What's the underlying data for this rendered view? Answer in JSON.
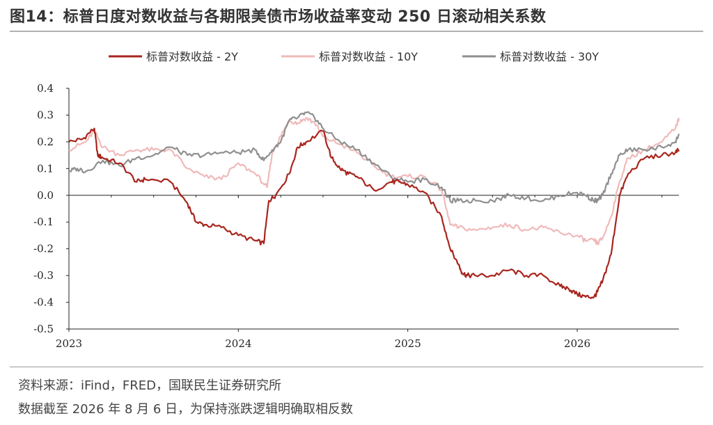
{
  "title": "图14：标普日度对数收益与各期限美债市场收益率变动 250 日滚动相关系数",
  "source_note": "资料来源：iFind，FRED，国联民生证券研究所",
  "date_note": "数据截至 2026 年 8 月 6 日，为保持涨跌逻辑明确取相反数",
  "chart_data": {
    "type": "line",
    "xlabel": "",
    "ylabel": "",
    "x_ticks": [
      "2023",
      "2024",
      "2025",
      "2026"
    ],
    "y_ticks": [
      "0.4",
      "0.3",
      "0.2",
      "0.1",
      "0.0",
      "-0.1",
      "-0.2",
      "-0.3",
      "-0.4",
      "-0.5"
    ],
    "xlim": [
      2023.0,
      2026.6
    ],
    "ylim": [
      -0.5,
      0.4
    ],
    "legend_position": "top",
    "grid": false,
    "zero_line": true,
    "series": [
      {
        "name": "标普对数收益 - 2Y",
        "color": "#a8251d",
        "x": [
          2023.0,
          2023.08,
          2023.15,
          2023.17,
          2023.2,
          2023.3,
          2023.4,
          2023.45,
          2023.6,
          2023.7,
          2023.75,
          2023.8,
          2023.9,
          2024.0,
          2024.1,
          2024.15,
          2024.18,
          2024.22,
          2024.3,
          2024.35,
          2024.4,
          2024.5,
          2024.55,
          2024.6,
          2024.65,
          2024.7,
          2024.8,
          2024.9,
          2024.95,
          2025.0,
          2025.1,
          2025.2,
          2025.25,
          2025.3,
          2025.32,
          2025.35,
          2025.4,
          2025.5,
          2025.6,
          2025.7,
          2025.8,
          2025.9,
          2025.95,
          2026.0,
          2026.05,
          2026.1,
          2026.12,
          2026.15,
          2026.2,
          2026.25,
          2026.3,
          2026.4,
          2026.5,
          2026.58,
          2026.6
        ],
        "y": [
          0.2,
          0.21,
          0.25,
          0.15,
          0.14,
          0.12,
          0.05,
          0.06,
          0.05,
          -0.03,
          -0.1,
          -0.11,
          -0.12,
          -0.15,
          -0.17,
          -0.18,
          -0.02,
          0.0,
          0.08,
          0.18,
          0.2,
          0.24,
          0.14,
          0.1,
          0.08,
          0.07,
          0.02,
          0.05,
          0.05,
          0.04,
          0.01,
          -0.08,
          -0.2,
          -0.26,
          -0.29,
          -0.3,
          -0.3,
          -0.3,
          -0.28,
          -0.3,
          -0.3,
          -0.34,
          -0.35,
          -0.37,
          -0.38,
          -0.38,
          -0.36,
          -0.32,
          -0.22,
          0.0,
          0.08,
          0.14,
          0.15,
          0.16,
          0.17
        ]
      },
      {
        "name": "标普对数收益 - 10Y",
        "color": "#f0b9b9",
        "x": [
          2023.0,
          2023.1,
          2023.15,
          2023.2,
          2023.3,
          2023.4,
          2023.5,
          2023.6,
          2023.7,
          2023.8,
          2023.9,
          2024.0,
          2024.1,
          2024.17,
          2024.2,
          2024.25,
          2024.3,
          2024.35,
          2024.4,
          2024.45,
          2024.5,
          2024.6,
          2024.7,
          2024.8,
          2024.9,
          2025.0,
          2025.1,
          2025.2,
          2025.25,
          2025.3,
          2025.4,
          2025.5,
          2025.6,
          2025.7,
          2025.8,
          2025.9,
          2026.0,
          2026.05,
          2026.1,
          2026.12,
          2026.15,
          2026.2,
          2026.25,
          2026.3,
          2026.4,
          2026.5,
          2026.58,
          2026.6
        ],
        "y": [
          0.17,
          0.2,
          0.24,
          0.18,
          0.15,
          0.17,
          0.17,
          0.17,
          0.1,
          0.07,
          0.06,
          0.12,
          0.08,
          0.03,
          0.16,
          0.22,
          0.28,
          0.27,
          0.29,
          0.27,
          0.22,
          0.19,
          0.16,
          0.11,
          0.07,
          0.07,
          0.07,
          0.02,
          -0.11,
          -0.12,
          -0.13,
          -0.12,
          -0.11,
          -0.13,
          -0.12,
          -0.14,
          -0.15,
          -0.17,
          -0.17,
          -0.18,
          -0.16,
          -0.08,
          0.05,
          0.14,
          0.17,
          0.2,
          0.25,
          0.29
        ]
      },
      {
        "name": "标普对数收益 - 30Y",
        "color": "#8f8f8f",
        "x": [
          2023.0,
          2023.05,
          2023.1,
          2023.2,
          2023.3,
          2023.4,
          2023.5,
          2023.6,
          2023.7,
          2023.8,
          2023.9,
          2024.0,
          2024.1,
          2024.15,
          2024.2,
          2024.25,
          2024.3,
          2024.35,
          2024.4,
          2024.45,
          2024.5,
          2024.6,
          2024.7,
          2024.8,
          2024.9,
          2025.0,
          2025.1,
          2025.2,
          2025.25,
          2025.3,
          2025.4,
          2025.5,
          2025.6,
          2025.7,
          2025.8,
          2025.9,
          2026.0,
          2026.05,
          2026.1,
          2026.12,
          2026.15,
          2026.2,
          2026.25,
          2026.3,
          2026.4,
          2026.5,
          2026.58,
          2026.6
        ],
        "y": [
          0.09,
          0.1,
          0.09,
          0.13,
          0.11,
          0.14,
          0.15,
          0.18,
          0.15,
          0.15,
          0.16,
          0.16,
          0.17,
          0.13,
          0.17,
          0.2,
          0.28,
          0.29,
          0.31,
          0.29,
          0.25,
          0.2,
          0.17,
          0.12,
          0.07,
          0.05,
          0.06,
          0.03,
          -0.02,
          -0.02,
          -0.02,
          -0.02,
          0.0,
          -0.01,
          -0.02,
          0.0,
          0.01,
          0.0,
          -0.02,
          -0.02,
          0.0,
          0.08,
          0.15,
          0.17,
          0.17,
          0.18,
          0.2,
          0.23
        ]
      }
    ]
  }
}
